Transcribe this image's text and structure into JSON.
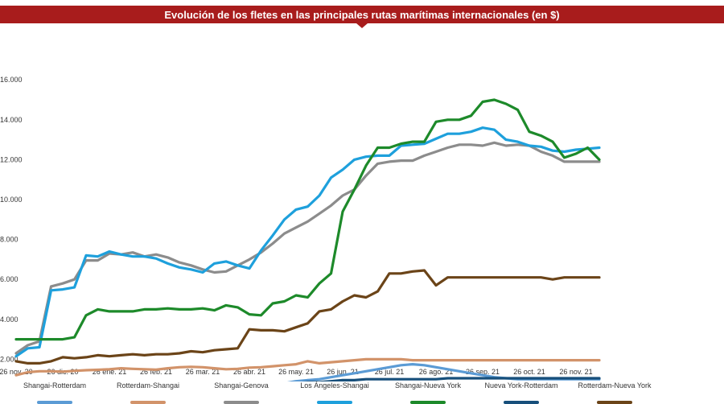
{
  "chart_data": {
    "type": "line",
    "title": "Evolución de los fletes en las principales rutas marítimas internacionales (en $)",
    "xlabel": "",
    "ylabel": "",
    "ylim": [
      0,
      16000
    ],
    "yticks": [
      2000,
      4000,
      6000,
      8000,
      10000,
      12000,
      14000,
      16000
    ],
    "ytick_labels": [
      "2.000",
      "4.000",
      "6.000",
      "8.000",
      "10.000",
      "12.000",
      "14.000",
      "16.000"
    ],
    "xlim": [
      0,
      52
    ],
    "xticks": [
      0,
      4,
      8,
      12,
      16,
      20,
      24,
      28,
      32,
      36,
      40,
      44,
      48
    ],
    "xtick_labels": [
      "26 nov. 20",
      "26 dic. 20",
      "26 ene. 21",
      "26 feb. 21",
      "26 mar. 21",
      "26 abr. 21",
      "26 may. 21",
      "26 jun. 21",
      "26 jul. 21",
      "26 ago. 21",
      "26 sep. 21",
      "26 oct. 21",
      "26 nov. 21"
    ],
    "grid": false,
    "legend_position": "bottom",
    "x": [
      0,
      1,
      2,
      3,
      4,
      5,
      6,
      7,
      8,
      9,
      10,
      11,
      12,
      13,
      14,
      15,
      16,
      17,
      18,
      19,
      20,
      21,
      22,
      23,
      24,
      25,
      26,
      27,
      28,
      29,
      30,
      31,
      32,
      33,
      34,
      35,
      36,
      37,
      38,
      39,
      40,
      41,
      42,
      43,
      44,
      45,
      46,
      47,
      48,
      49,
      50
    ],
    "series": [
      {
        "name": "Shangai-Rotterdam",
        "color": "#5b9bd5",
        "values": [
          400,
          400,
          400,
          400,
          410,
          420,
          420,
          430,
          440,
          450,
          450,
          450,
          460,
          470,
          480,
          490,
          500,
          500,
          510,
          520,
          530,
          550,
          700,
          800,
          900,
          950,
          1000,
          1100,
          1200,
          1300,
          1400,
          1500,
          1600,
          1700,
          1750,
          1700,
          1600,
          1500,
          1400,
          1300,
          1200,
          1100,
          1050,
          1000,
          1000,
          1000,
          1000,
          1000,
          1000,
          1000,
          1000
        ]
      },
      {
        "name": "Rotterdam-Shangai",
        "color": "#d2936a",
        "values": [
          1200,
          1350,
          1400,
          1400,
          1380,
          1420,
          1450,
          1470,
          1500,
          1550,
          1520,
          1500,
          1480,
          1550,
          1600,
          1620,
          1600,
          1550,
          1500,
          1520,
          1580,
          1600,
          1650,
          1700,
          1750,
          1900,
          1800,
          1850,
          1900,
          1950,
          2000,
          2000,
          2000,
          2000,
          1950,
          1950,
          1950,
          1950,
          1950,
          1950,
          1950,
          1950,
          1950,
          1950,
          1950,
          1950,
          1950,
          1950,
          1950,
          1950,
          1950
        ]
      },
      {
        "name": "Shangai-Genova",
        "color": "#8c8c8c",
        "values": [
          2300,
          2700,
          2900,
          5650,
          5800,
          6000,
          6950,
          6950,
          7300,
          7250,
          7350,
          7150,
          7250,
          7100,
          6850,
          6700,
          6500,
          6350,
          6400,
          6700,
          7000,
          7350,
          7800,
          8300,
          8600,
          8900,
          9300,
          9700,
          10200,
          10500,
          11200,
          11800,
          11900,
          11950,
          11950,
          12200,
          12400,
          12600,
          12750,
          12750,
          12700,
          12850,
          12700,
          12750,
          12700,
          12400,
          12200,
          11900,
          11900,
          11900,
          11900
        ]
      },
      {
        "name": "Los Ángeles-Shangai",
        "color": "#1ea0dc",
        "values": [
          2150,
          2550,
          2600,
          5450,
          5500,
          5600,
          7200,
          7150,
          7400,
          7250,
          7150,
          7150,
          7050,
          6800,
          6600,
          6500,
          6350,
          6800,
          6900,
          6700,
          6550,
          7450,
          8200,
          9000,
          9500,
          9650,
          10200,
          11100,
          11500,
          12000,
          12150,
          12200,
          12200,
          12700,
          12750,
          12800,
          13050,
          13300,
          13300,
          13400,
          13600,
          13500,
          13000,
          12900,
          12700,
          12650,
          12450,
          12400,
          12500,
          12550,
          12600
        ]
      },
      {
        "name": "Shangai-Nueva York",
        "color": "#1d8a2a",
        "values": [
          3000,
          3000,
          3000,
          3000,
          3000,
          3100,
          4200,
          4500,
          4400,
          4400,
          4400,
          4500,
          4500,
          4550,
          4500,
          4500,
          4550,
          4450,
          4700,
          4600,
          4250,
          4200,
          4800,
          4900,
          5200,
          5100,
          5800,
          6300,
          9400,
          10500,
          11700,
          12600,
          12600,
          12800,
          12900,
          12900,
          13900,
          14000,
          14000,
          14200,
          14900,
          15000,
          14800,
          14500,
          13400,
          13200,
          12900,
          12100,
          12300,
          12600,
          12000
        ]
      },
      {
        "name": "Nueva York-Rotterdam",
        "color": "#174f7b",
        "values": [
          500,
          500,
          500,
          500,
          500,
          550,
          550,
          550,
          600,
          650,
          650,
          650,
          650,
          650,
          650,
          650,
          650,
          650,
          650,
          650,
          700,
          700,
          750,
          800,
          800,
          850,
          850,
          900,
          950,
          950,
          1000,
          1000,
          1000,
          1000,
          1000,
          1000,
          1000,
          1050,
          1050,
          1050,
          1050,
          1050,
          1050,
          1050,
          1050,
          1050,
          1050,
          1050,
          1050,
          1050,
          1050
        ]
      },
      {
        "name": "Rotterdam-Nueva York",
        "color": "#6b4418",
        "values": [
          1900,
          1800,
          1800,
          1900,
          2100,
          2050,
          2100,
          2200,
          2150,
          2200,
          2250,
          2200,
          2250,
          2250,
          2300,
          2400,
          2350,
          2450,
          2500,
          2550,
          3500,
          3450,
          3450,
          3400,
          3600,
          3800,
          4400,
          4500,
          4900,
          5200,
          5100,
          5400,
          6300,
          6300,
          6400,
          6450,
          5700,
          6100,
          6100,
          6100,
          6100,
          6100,
          6100,
          6100,
          6100,
          6100,
          6000,
          6100,
          6100,
          6100,
          6100
        ]
      }
    ]
  }
}
